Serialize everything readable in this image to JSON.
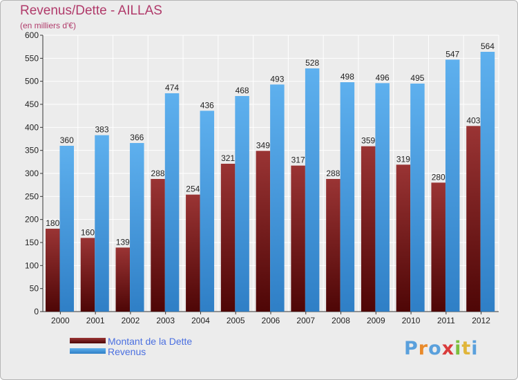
{
  "header": {
    "title": "Revenus/Dette - AILLAS",
    "subtitle": "(en milliers d'€)"
  },
  "legend": {
    "items": [
      {
        "label": "Montant de la Dette",
        "color": "#7a1a1a"
      },
      {
        "label": "Revenus",
        "color": "#4ea1e4"
      }
    ]
  },
  "logo": {
    "text": "Proxiti",
    "letter_colors": [
      "#5aa0dc",
      "#e98a2a",
      "#5aa0dc",
      "#d93b3b",
      "#7cbf3d",
      "#e0b53a",
      "#5aa0dc"
    ]
  },
  "chart_data": {
    "type": "bar",
    "title": "Revenus/Dette - AILLAS",
    "subtitle": "(en milliers d'€)",
    "xlabel": "",
    "ylabel": "",
    "ylim": [
      0,
      600
    ],
    "yticks": [
      0,
      50,
      100,
      150,
      200,
      250,
      300,
      350,
      400,
      450,
      500,
      550,
      600
    ],
    "grid": true,
    "legend_position": "bottom-left",
    "categories": [
      "2000",
      "2001",
      "2002",
      "2003",
      "2004",
      "2005",
      "2006",
      "2007",
      "2008",
      "2009",
      "2010",
      "2011",
      "2012"
    ],
    "series": [
      {
        "name": "Montant de la Dette",
        "color": "#7a1a1a",
        "values": [
          180,
          160,
          139,
          288,
          254,
          321,
          349,
          317,
          288,
          359,
          319,
          280,
          403
        ]
      },
      {
        "name": "Revenus",
        "color": "#4ea1e4",
        "values": [
          360,
          383,
          366,
          474,
          436,
          468,
          493,
          528,
          498,
          496,
          495,
          547,
          564
        ]
      }
    ]
  }
}
